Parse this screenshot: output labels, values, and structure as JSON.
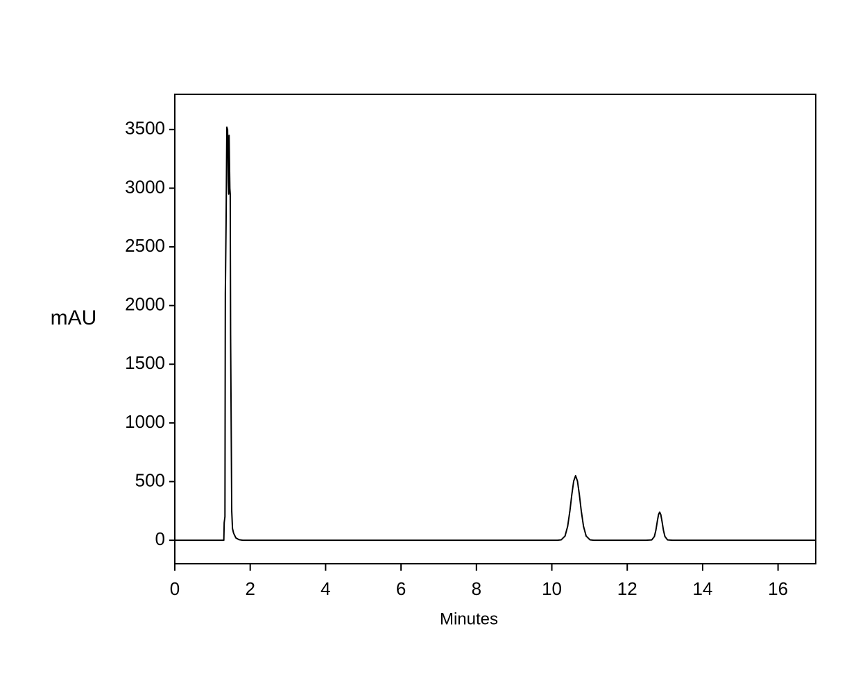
{
  "chart_data": {
    "type": "line",
    "x_label": "Minutes",
    "y_label": "mAU",
    "xlim": [
      0,
      17
    ],
    "ylim": [
      -200,
      3800
    ],
    "xticks": [
      0,
      2,
      4,
      6,
      8,
      10,
      12,
      14,
      16
    ],
    "yticks": [
      0,
      500,
      1000,
      1500,
      2000,
      2500,
      3000,
      3500
    ],
    "grid": false,
    "series": [
      {
        "color": "#000000",
        "x": [
          0,
          1.3,
          1.31,
          1.33,
          1.34,
          1.36,
          1.38,
          1.4,
          1.42,
          1.43,
          1.44,
          1.46,
          1.47,
          1.48,
          1.5,
          1.51,
          1.53,
          1.56,
          1.62,
          1.7,
          1.8,
          10.15,
          10.25,
          10.35,
          10.42,
          10.48,
          10.53,
          10.58,
          10.63,
          10.68,
          10.73,
          10.78,
          10.84,
          10.91,
          11.01,
          11.11,
          12.5,
          12.65,
          12.72,
          12.76,
          12.8,
          12.83,
          12.86,
          12.89,
          12.92,
          12.96,
          13.0,
          13.07,
          13.2,
          17
        ],
        "values": [
          0,
          0,
          150,
          200,
          2100,
          2700,
          3520,
          3500,
          3050,
          2950,
          3450,
          3000,
          2950,
          1750,
          750,
          250,
          100,
          60,
          20,
          5,
          0,
          0,
          4,
          36,
          119,
          252,
          389,
          504,
          550,
          504,
          389,
          252,
          119,
          36,
          4,
          0,
          0,
          3,
          32,
          86,
          166,
          219,
          240,
          219,
          166,
          86,
          32,
          3,
          0,
          0
        ]
      }
    ]
  }
}
